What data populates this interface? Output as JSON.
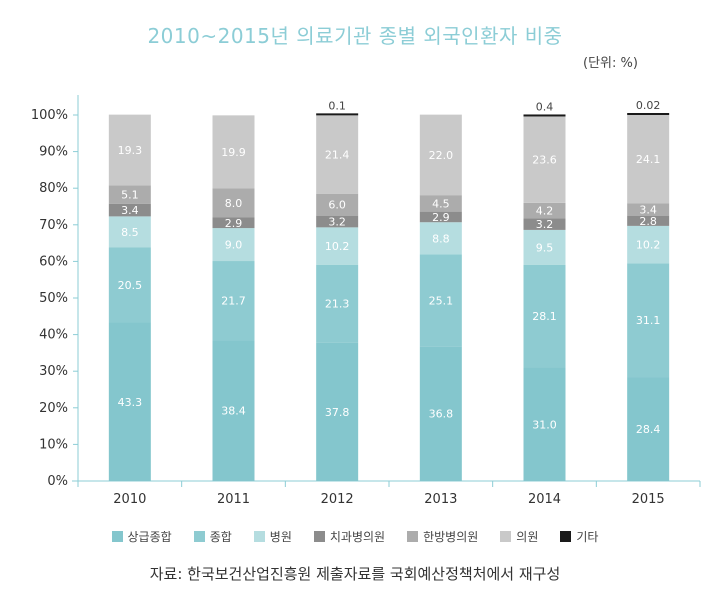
{
  "chart_data": {
    "type": "bar",
    "stacked": true,
    "title": "2010~2015년 의료기관 종별 외국인환자 비중",
    "unit_note": "(단위: %)",
    "xlabel": "",
    "ylabel": "",
    "ylim": [
      0,
      100
    ],
    "yticks": [
      "0%",
      "10%",
      "20%",
      "30%",
      "40%",
      "50%",
      "60%",
      "70%",
      "80%",
      "90%",
      "100%"
    ],
    "categories": [
      "2010",
      "2011",
      "2012",
      "2013",
      "2014",
      "2015"
    ],
    "series": [
      {
        "name": "상급종합",
        "color": "#84c6cd",
        "values": [
          43.3,
          38.4,
          37.8,
          36.8,
          31.0,
          28.4
        ]
      },
      {
        "name": "종합",
        "color": "#8ecbd1",
        "values": [
          20.5,
          21.7,
          21.3,
          25.1,
          28.1,
          31.1
        ]
      },
      {
        "name": "병원",
        "color": "#b5dde0",
        "values": [
          8.5,
          9.0,
          10.2,
          8.8,
          9.5,
          10.2
        ]
      },
      {
        "name": "치과병의원",
        "color": "#8c8c8c",
        "values": [
          3.4,
          2.9,
          3.2,
          2.9,
          3.2,
          2.8
        ]
      },
      {
        "name": "한방병의원",
        "color": "#acacac",
        "values": [
          5.1,
          8.0,
          6.0,
          4.5,
          4.2,
          3.4
        ]
      },
      {
        "name": "의원",
        "color": "#c9c9c9",
        "values": [
          19.3,
          19.9,
          21.4,
          22.0,
          23.6,
          24.1
        ]
      },
      {
        "name": "기타",
        "color": "#1a1a1a",
        "values": [
          null,
          null,
          0.1,
          null,
          0.4,
          0.02
        ]
      }
    ],
    "data_labels": {
      "상급종합": [
        "43.3",
        "38.4",
        "37.8",
        "36.8",
        "31.0",
        "28.4"
      ],
      "종합": [
        "20.5",
        "21.7",
        "21.3",
        "25.1",
        "28.1",
        "31.1"
      ],
      "병원": [
        "8.5",
        "9.0",
        "10.2",
        "8.8",
        "9.5",
        "10.2"
      ],
      "치과병의원": [
        "3.4",
        "2.9",
        "3.2",
        "2.9",
        "3.2",
        "2.8"
      ],
      "한방병의원": [
        "5.1",
        "8.0",
        "6.0",
        "4.5",
        "4.2",
        "3.4"
      ],
      "의원": [
        "19.3",
        "19.9",
        "21.4",
        "22.0",
        "23.6",
        "24.1"
      ],
      "기타": [
        "",
        "",
        "0.1",
        "",
        "0.4",
        "0.02"
      ]
    },
    "legend_position": "bottom",
    "grid": false,
    "axis_color": "#8ccdd6",
    "title_color": "#8ccdd6"
  },
  "source_note": "자료: 한국보건산업진흥원 제출자료를 국회예산정책처에서 재구성"
}
